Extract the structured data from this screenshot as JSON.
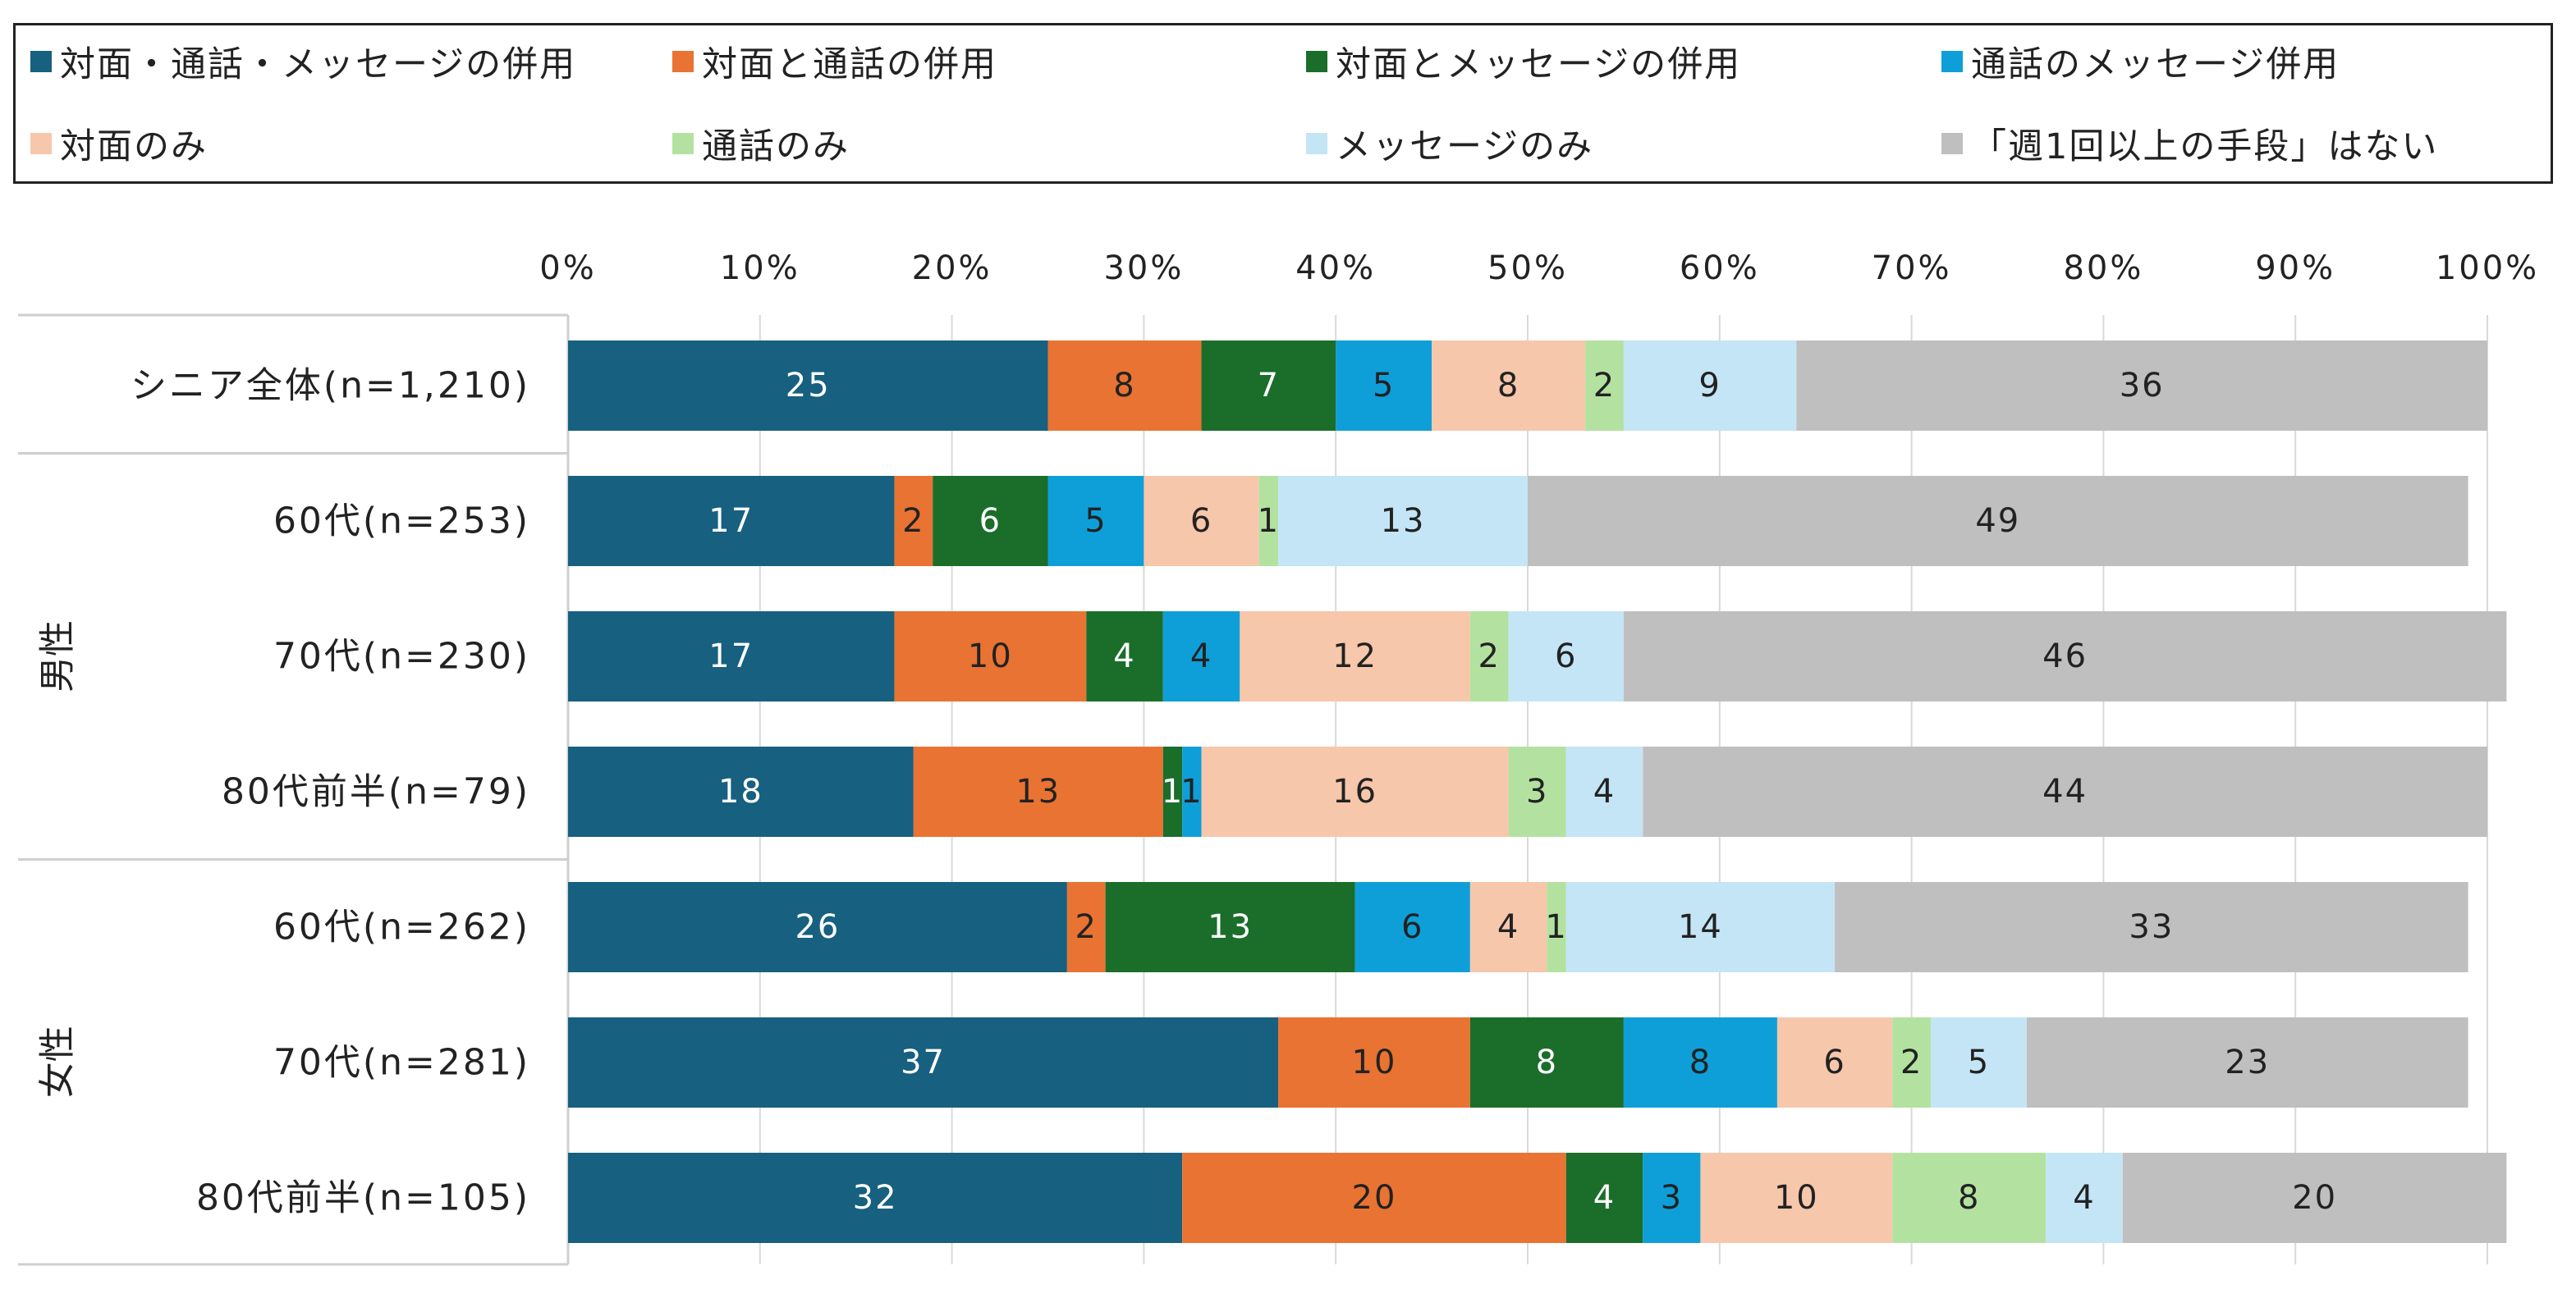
{
  "chart_data": {
    "type": "bar",
    "orientation": "horizontal",
    "stacked": true,
    "percent_axis": true,
    "xlim": [
      0,
      100
    ],
    "xticks": [
      "0%",
      "10%",
      "20%",
      "30%",
      "40%",
      "50%",
      "60%",
      "70%",
      "80%",
      "90%",
      "100%"
    ],
    "grid": true,
    "legend_position": "top",
    "groups": [
      {
        "label": "",
        "rows": [
          0
        ]
      },
      {
        "label": "男性",
        "rows": [
          1,
          2,
          3
        ]
      },
      {
        "label": "女性",
        "rows": [
          4,
          5,
          6
        ]
      }
    ],
    "categories": [
      "シニア全体(n=1,210)",
      "60代(n=253)",
      "70代(n=230)",
      "80代前半(n=79)",
      "60代(n=262)",
      "70代(n=281)",
      "80代前半(n=105)"
    ],
    "series": [
      {
        "name": "対面・通話・メッセージの併用",
        "color": "#17607f",
        "label_color": "#ffffff",
        "values": [
          25,
          17,
          17,
          18,
          26,
          37,
          32
        ]
      },
      {
        "name": "対面と通話の併用",
        "color": "#e97333",
        "label_color": "#222222",
        "values": [
          8,
          2,
          10,
          13,
          2,
          10,
          20
        ]
      },
      {
        "name": "対面とメッセージの併用",
        "color": "#1a6e2a",
        "label_color": "#ffffff",
        "values": [
          7,
          6,
          4,
          1,
          13,
          8,
          4
        ]
      },
      {
        "name": "通話のメッセージ併用",
        "color": "#0f9fd8",
        "label_color": "#222222",
        "values": [
          5,
          5,
          4,
          1,
          6,
          8,
          3
        ]
      },
      {
        "name": "対面のみ",
        "color": "#f6c7ab",
        "label_color": "#222222",
        "values": [
          8,
          6,
          12,
          16,
          4,
          6,
          10
        ]
      },
      {
        "name": "通話のみ",
        "color": "#b3e2a0",
        "label_color": "#222222",
        "values": [
          2,
          1,
          2,
          3,
          1,
          2,
          8
        ]
      },
      {
        "name": "メッセージのみ",
        "color": "#c4e5f5",
        "label_color": "#222222",
        "values": [
          9,
          13,
          6,
          4,
          14,
          5,
          4
        ]
      },
      {
        "name": "「週1回以上の手段」はない",
        "color": "#bfbfbf",
        "label_color": "#222222",
        "values": [
          36,
          49,
          46,
          44,
          33,
          23,
          20
        ]
      }
    ]
  }
}
